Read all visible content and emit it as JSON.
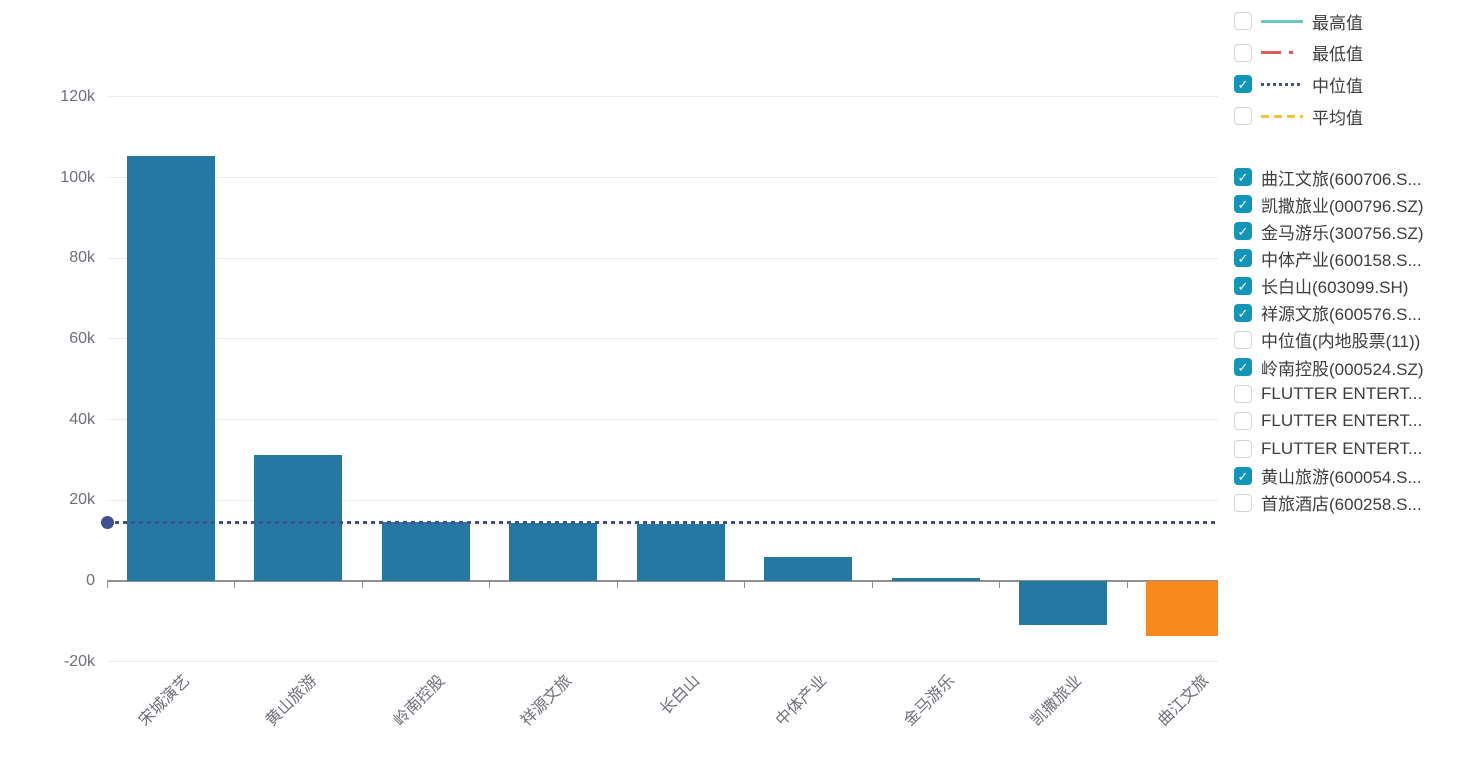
{
  "colors": {
    "bar_default": "#2577A4",
    "bar_highlight": "#F5891B",
    "median_line": "#41518F",
    "max_line": "#6FC7C3",
    "min_line": "#E05C5C",
    "avg_line": "#EFC53E",
    "checkbox_checked": "#1195B8",
    "grid_line": "#E8EBF3",
    "axis_line": "#8F8F8F",
    "axis_text": "#6E7079",
    "legend_text": "#3D3D3D"
  },
  "chart_data": {
    "type": "bar",
    "title": "",
    "xlabel": "",
    "ylabel": "",
    "categories": [
      "宋城演艺",
      "黄山旅游",
      "岭南控股",
      "祥源文旅",
      "长白山",
      "中体产业",
      "金马游乐",
      "凯撒旅业",
      "曲江文旅"
    ],
    "values": [
      105300,
      31300,
      14500,
      14400,
      14200,
      6000,
      700,
      -10800,
      -13600
    ],
    "bar_color_default": "#2577A4",
    "highlight": {
      "index": 8,
      "color": "#F5891B"
    },
    "median_line": {
      "label": "中位值",
      "value": 14400,
      "color": "#41518F"
    },
    "yticks": {
      "values": [
        120000,
        100000,
        80000,
        60000,
        40000,
        20000,
        0,
        -20000
      ],
      "labels": [
        "120k",
        "100k",
        "80k",
        "60k",
        "40k",
        "20k",
        "0",
        "-20k"
      ]
    },
    "ylim": [
      -20000,
      125000
    ],
    "grid": true,
    "legend_position": "right"
  },
  "legend_stats": [
    {
      "label": "最高值",
      "checked": false,
      "line_style": "solid",
      "color": "#6FC7C3"
    },
    {
      "label": "最低值",
      "checked": false,
      "line_style": "dash-dot",
      "color": "#E05C5C"
    },
    {
      "label": "中位值",
      "checked": true,
      "line_style": "dotted",
      "color": "#41518F"
    },
    {
      "label": "平均值",
      "checked": false,
      "line_style": "dashed",
      "color": "#EFC53E"
    }
  ],
  "legend_series": [
    {
      "label": "曲江文旅(600706.S...",
      "checked": true
    },
    {
      "label": "凯撒旅业(000796.SZ)",
      "checked": true
    },
    {
      "label": "金马游乐(300756.SZ)",
      "checked": true
    },
    {
      "label": "中体产业(600158.S...",
      "checked": true
    },
    {
      "label": "长白山(603099.SH)",
      "checked": true
    },
    {
      "label": "祥源文旅(600576.S...",
      "checked": true
    },
    {
      "label": "中位值(内地股票(11))",
      "checked": false
    },
    {
      "label": "岭南控股(000524.SZ)",
      "checked": true
    },
    {
      "label": "FLUTTER ENTERT...",
      "checked": false
    },
    {
      "label": "FLUTTER ENTERT...",
      "checked": false
    },
    {
      "label": "FLUTTER ENTERT...",
      "checked": false
    },
    {
      "label": "黄山旅游(600054.S...",
      "checked": true
    },
    {
      "label": "首旅酒店(600258.S...",
      "checked": false
    }
  ]
}
